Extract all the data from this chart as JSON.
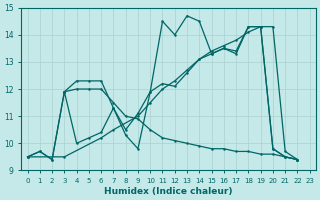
{
  "xlabel": "Humidex (Indice chaleur)",
  "xlim": [
    -0.5,
    23.5
  ],
  "ylim": [
    9,
    15
  ],
  "yticks": [
    9,
    10,
    11,
    12,
    13,
    14,
    15
  ],
  "xticks": [
    0,
    1,
    2,
    3,
    4,
    5,
    6,
    7,
    8,
    9,
    10,
    11,
    12,
    13,
    14,
    15,
    16,
    17,
    18,
    19,
    20,
    21,
    22,
    23
  ],
  "bg_color": "#c5e8e8",
  "grid_color": "#aad0d0",
  "line_color": "#006666",
  "series": [
    {
      "x": [
        0,
        1,
        2,
        3,
        4,
        5,
        6,
        7,
        8,
        9,
        10,
        11,
        12,
        13,
        14,
        15,
        16,
        17,
        18,
        19,
        20,
        21,
        22
      ],
      "y": [
        9.5,
        9.7,
        9.4,
        11.9,
        12.3,
        12.3,
        12.3,
        11.3,
        10.3,
        9.8,
        11.9,
        14.5,
        14.0,
        14.7,
        14.5,
        13.3,
        13.5,
        13.3,
        14.3,
        14.3,
        9.8,
        9.5,
        9.4
      ]
    },
    {
      "x": [
        0,
        3,
        6,
        7,
        9,
        10,
        11,
        12,
        13,
        14,
        15,
        16,
        17,
        18,
        19,
        20,
        21,
        22
      ],
      "y": [
        9.5,
        9.5,
        10.2,
        10.5,
        11.0,
        11.5,
        12.0,
        12.3,
        12.7,
        13.1,
        13.4,
        13.6,
        13.8,
        14.1,
        14.3,
        14.3,
        9.7,
        9.4
      ]
    },
    {
      "x": [
        3,
        4,
        5,
        6,
        7,
        8,
        9,
        10,
        11,
        12,
        13,
        14,
        15,
        16,
        17,
        18,
        19,
        20,
        21,
        22
      ],
      "y": [
        11.9,
        12.0,
        12.0,
        12.0,
        11.5,
        11.0,
        10.9,
        10.5,
        10.2,
        10.1,
        10.0,
        9.9,
        9.8,
        9.8,
        9.7,
        9.7,
        9.6,
        9.6,
        9.5,
        9.4
      ]
    },
    {
      "x": [
        0,
        1,
        2,
        3,
        4,
        5,
        6,
        7,
        8,
        9,
        10,
        11,
        12,
        13,
        14,
        15,
        16,
        17,
        18,
        19,
        20,
        21,
        22
      ],
      "y": [
        9.5,
        9.7,
        9.4,
        11.9,
        10.0,
        10.2,
        10.4,
        11.3,
        10.5,
        11.1,
        11.9,
        12.2,
        12.1,
        12.6,
        13.1,
        13.3,
        13.5,
        13.4,
        14.3,
        14.3,
        9.8,
        9.5,
        9.4
      ]
    }
  ]
}
